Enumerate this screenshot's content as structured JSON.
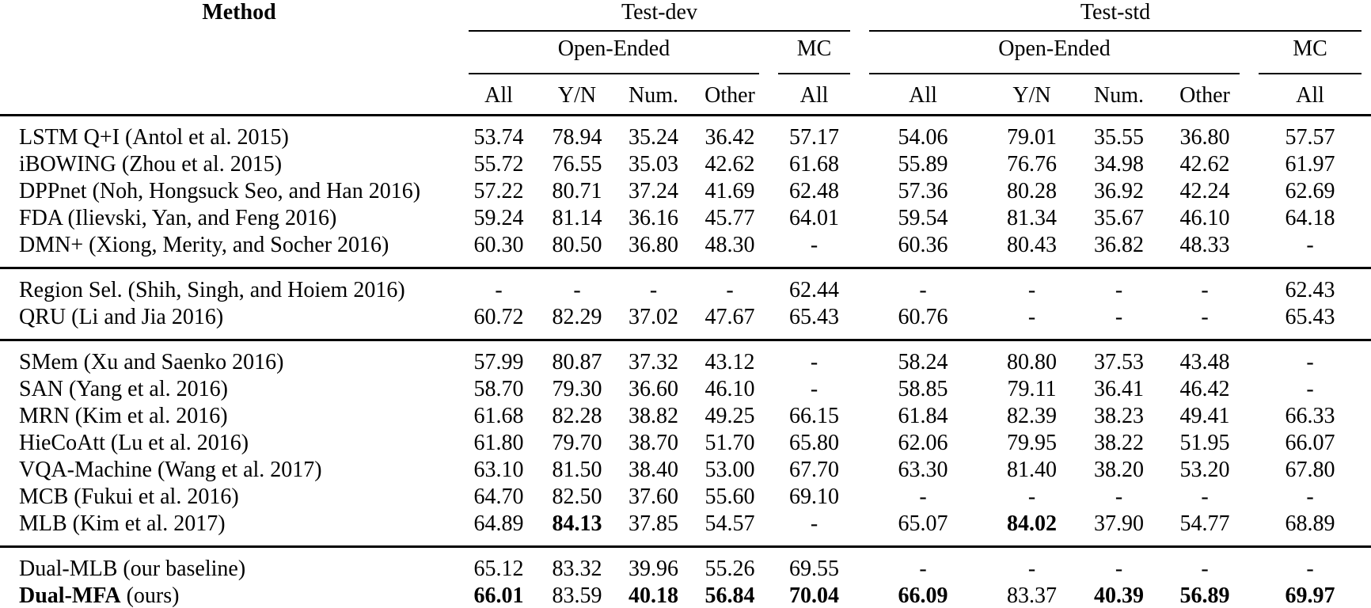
{
  "table": {
    "header": {
      "method": "Method",
      "test_dev": "Test-dev",
      "test_std": "Test-std",
      "open_ended": "Open-Ended",
      "mc": "MC",
      "subcols": [
        "All",
        "Y/N",
        "Num.",
        "Other",
        "All"
      ]
    },
    "groups": [
      {
        "rows": [
          {
            "method": [
              {
                "t": "LSTM Q+I (Antol et al. 2015)"
              }
            ],
            "dev": [
              "53.74",
              "78.94",
              "35.24",
              "36.42",
              "57.17"
            ],
            "std": [
              "54.06",
              "79.01",
              "35.55",
              "36.80",
              "57.57"
            ]
          },
          {
            "method": [
              {
                "t": "iBOWING (Zhou et al. 2015)"
              }
            ],
            "dev": [
              "55.72",
              "76.55",
              "35.03",
              "42.62",
              "61.68"
            ],
            "std": [
              "55.89",
              "76.76",
              "34.98",
              "42.62",
              "61.97"
            ]
          },
          {
            "method": [
              {
                "t": "DPPnet (Noh, Hongsuck Seo, and Han 2016)"
              }
            ],
            "dev": [
              "57.22",
              "80.71",
              "37.24",
              "41.69",
              "62.48"
            ],
            "std": [
              "57.36",
              "80.28",
              "36.92",
              "42.24",
              "62.69"
            ]
          },
          {
            "method": [
              {
                "t": "FDA (Ilievski, Yan, and Feng 2016)"
              }
            ],
            "dev": [
              "59.24",
              "81.14",
              "36.16",
              "45.77",
              "64.01"
            ],
            "std": [
              "59.54",
              "81.34",
              "35.67",
              "46.10",
              "64.18"
            ]
          },
          {
            "method": [
              {
                "t": "DMN+ (Xiong, Merity, and Socher 2016)"
              }
            ],
            "dev": [
              "60.30",
              "80.50",
              "36.80",
              "48.30",
              "-"
            ],
            "std": [
              "60.36",
              "80.43",
              "36.82",
              "48.33",
              "-"
            ]
          }
        ]
      },
      {
        "rows": [
          {
            "method": [
              {
                "t": "Region Sel. (Shih, Singh, and Hoiem 2016)"
              }
            ],
            "dev": [
              "-",
              "-",
              "-",
              "-",
              "62.44"
            ],
            "std": [
              "-",
              "-",
              "-",
              "-",
              "62.43"
            ]
          },
          {
            "method": [
              {
                "t": "QRU (Li and Jia 2016)"
              }
            ],
            "dev": [
              "60.72",
              "82.29",
              "37.02",
              "47.67",
              "65.43"
            ],
            "std": [
              "60.76",
              "-",
              "-",
              "-",
              "65.43"
            ]
          }
        ]
      },
      {
        "rows": [
          {
            "method": [
              {
                "t": "SMem (Xu and Saenko 2016)"
              }
            ],
            "dev": [
              "57.99",
              "80.87",
              "37.32",
              "43.12",
              "-"
            ],
            "std": [
              "58.24",
              "80.80",
              "37.53",
              "43.48",
              "-"
            ]
          },
          {
            "method": [
              {
                "t": "SAN (Yang et al. 2016)"
              }
            ],
            "dev": [
              "58.70",
              "79.30",
              "36.60",
              "46.10",
              "-"
            ],
            "std": [
              "58.85",
              "79.11",
              "36.41",
              "46.42",
              "-"
            ]
          },
          {
            "method": [
              {
                "t": "MRN (Kim et al. 2016)"
              }
            ],
            "dev": [
              "61.68",
              "82.28",
              "38.82",
              "49.25",
              "66.15"
            ],
            "std": [
              "61.84",
              "82.39",
              "38.23",
              "49.41",
              "66.33"
            ]
          },
          {
            "method": [
              {
                "t": "HieCoAtt (Lu et al. 2016)"
              }
            ],
            "dev": [
              "61.80",
              "79.70",
              "38.70",
              "51.70",
              "65.80"
            ],
            "std": [
              "62.06",
              "79.95",
              "38.22",
              "51.95",
              "66.07"
            ]
          },
          {
            "method": [
              {
                "t": "VQA-Machine (Wang et al. 2017)"
              }
            ],
            "dev": [
              "63.10",
              "81.50",
              "38.40",
              "53.00",
              "67.70"
            ],
            "std": [
              "63.30",
              "81.40",
              "38.20",
              "53.20",
              "67.80"
            ]
          },
          {
            "method": [
              {
                "t": "MCB (Fukui et al. 2016)"
              }
            ],
            "dev": [
              "64.70",
              "82.50",
              "37.60",
              "55.60",
              "69.10"
            ],
            "std": [
              "-",
              "-",
              "-",
              "-",
              "-"
            ]
          },
          {
            "method": [
              {
                "t": "MLB (Kim et al. 2017)"
              }
            ],
            "dev": [
              "64.89",
              "84.13",
              "37.85",
              "54.57",
              "-"
            ],
            "dev_bold": [
              false,
              true,
              false,
              false,
              false
            ],
            "std": [
              "65.07",
              "84.02",
              "37.90",
              "54.77",
              "68.89"
            ],
            "std_bold": [
              false,
              true,
              false,
              false,
              false
            ]
          }
        ]
      },
      {
        "rows": [
          {
            "method": [
              {
                "t": "Dual-MLB (our baseline)"
              }
            ],
            "dev": [
              "65.12",
              "83.32",
              "39.96",
              "55.26",
              "69.55"
            ],
            "std": [
              "-",
              "-",
              "-",
              "-",
              "-"
            ]
          },
          {
            "method": [
              {
                "t": "Dual-MFA",
                "b": true
              },
              {
                "t": " (ours)"
              }
            ],
            "dev": [
              "66.01",
              "83.59",
              "40.18",
              "56.84",
              "70.04"
            ],
            "dev_bold": [
              true,
              false,
              true,
              true,
              true
            ],
            "std": [
              "66.09",
              "83.37",
              "40.39",
              "56.89",
              "69.97"
            ],
            "std_bold": [
              true,
              false,
              true,
              true,
              true
            ]
          }
        ]
      }
    ]
  }
}
